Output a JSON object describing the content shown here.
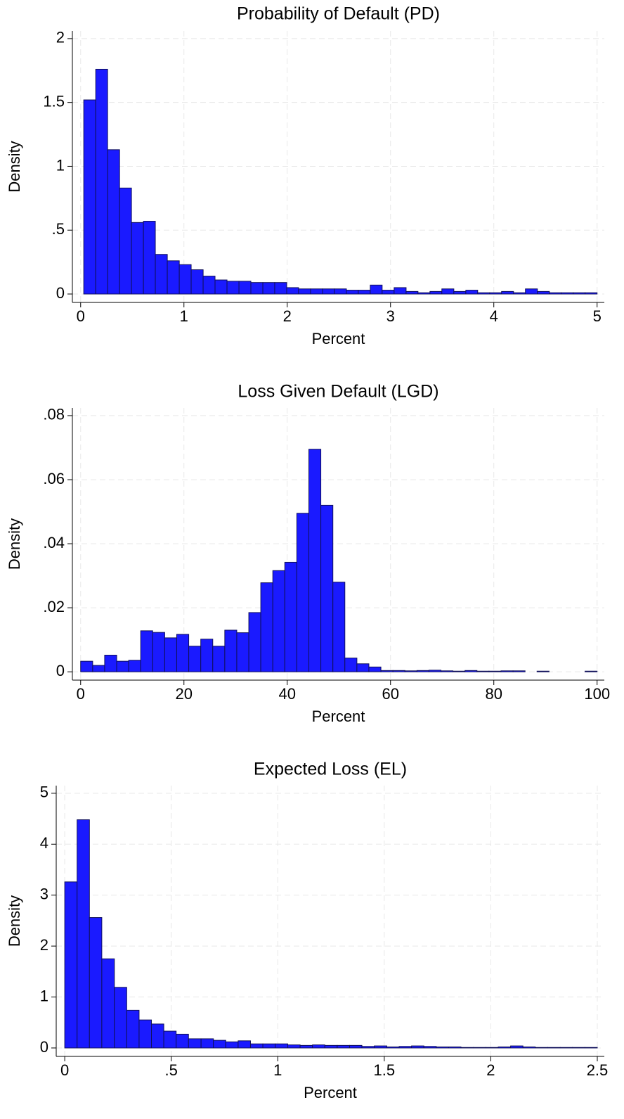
{
  "chart_data": [
    {
      "type": "histogram",
      "title": "Probability of Default (PD)",
      "x_label": "Percent",
      "y_label": "Density",
      "color": "#1a1aff",
      "grid": true,
      "bins": [
        0.03,
        0.146,
        0.261,
        0.377,
        0.492,
        0.608,
        0.723,
        0.839,
        0.955,
        1.07,
        1.186,
        1.301,
        1.417,
        1.533,
        1.648,
        1.764,
        1.879,
        1.995,
        2.11,
        2.226,
        2.342,
        2.457,
        2.573,
        2.688,
        2.804,
        2.919,
        3.035,
        3.151,
        3.266,
        3.382,
        3.497,
        3.613,
        3.729,
        3.844,
        3.96,
        4.075,
        4.191,
        4.306,
        4.422,
        4.538,
        4.653,
        4.769,
        4.884,
        5.0
      ],
      "values": [
        1.52,
        1.76,
        1.13,
        0.83,
        0.56,
        0.57,
        0.31,
        0.26,
        0.23,
        0.19,
        0.14,
        0.11,
        0.1,
        0.1,
        0.09,
        0.09,
        0.09,
        0.05,
        0.04,
        0.04,
        0.04,
        0.04,
        0.03,
        0.03,
        0.07,
        0.03,
        0.05,
        0.02,
        0.01,
        0.02,
        0.04,
        0.02,
        0.03,
        0.01,
        0.01,
        0.02,
        0.01,
        0.04,
        0.02,
        0.01,
        0.01,
        0.01,
        0.01
      ],
      "xlim": [
        -0.08,
        5.07
      ],
      "xticks": [
        0,
        1,
        2,
        3,
        4,
        5
      ],
      "ylim": [
        -0.066,
        2.06
      ],
      "yticks": [
        0,
        {
          "value": 0.5,
          "label": ".5"
        },
        1,
        1.5,
        2
      ]
    },
    {
      "type": "histogram",
      "title": "Loss Given Default (LGD)",
      "x_label": "Percent",
      "y_label": "Density",
      "color": "#1a1aff",
      "grid": true,
      "bins": [
        0,
        2.33,
        4.65,
        6.98,
        9.3,
        11.63,
        13.95,
        16.28,
        18.6,
        20.93,
        23.26,
        25.58,
        27.91,
        30.23,
        32.56,
        34.88,
        37.21,
        39.53,
        41.86,
        44.19,
        46.51,
        48.84,
        51.16,
        53.49,
        55.81,
        58.14,
        60.47,
        62.79,
        65.12,
        67.44,
        69.77,
        72.09,
        74.42,
        76.74,
        79.07,
        81.4,
        83.72,
        86.05,
        88.37,
        90.7,
        93.02,
        95.35,
        97.67,
        100
      ],
      "values": [
        0.0033,
        0.002,
        0.0052,
        0.0033,
        0.0036,
        0.0128,
        0.0123,
        0.0106,
        0.0117,
        0.008,
        0.0102,
        0.008,
        0.013,
        0.0122,
        0.0185,
        0.0278,
        0.0316,
        0.0342,
        0.0495,
        0.0695,
        0.052,
        0.028,
        0.0043,
        0.0025,
        0.0015,
        0.0004,
        0.0004,
        0.0003,
        0.0004,
        0.0005,
        0.0003,
        0.0002,
        0.0004,
        0.0002,
        0.0002,
        0.0003,
        0.0003,
        0,
        0.0002,
        0,
        0,
        0,
        0.0002
      ],
      "xlim": [
        -1.6,
        101.4
      ],
      "xticks": [
        0,
        20,
        40,
        60,
        80,
        100
      ],
      "ylim": [
        -0.0026,
        0.0824
      ],
      "yticks": [
        0,
        {
          "value": 0.02,
          "label": ".02"
        },
        {
          "value": 0.04,
          "label": ".04"
        },
        {
          "value": 0.06,
          "label": ".06"
        },
        {
          "value": 0.08,
          "label": ".08"
        }
      ]
    },
    {
      "type": "histogram",
      "title": "Expected Loss (EL)",
      "x_label": "Percent",
      "y_label": "Density",
      "color": "#1a1aff",
      "grid": true,
      "bins": [
        0,
        0.058,
        0.116,
        0.174,
        0.233,
        0.291,
        0.349,
        0.407,
        0.465,
        0.523,
        0.581,
        0.64,
        0.698,
        0.756,
        0.814,
        0.872,
        0.93,
        0.988,
        1.047,
        1.105,
        1.163,
        1.221,
        1.279,
        1.337,
        1.395,
        1.453,
        1.512,
        1.57,
        1.628,
        1.686,
        1.744,
        1.802,
        1.86,
        1.919,
        1.977,
        2.035,
        2.093,
        2.151,
        2.209,
        2.267,
        2.326,
        2.384,
        2.442,
        2.5
      ],
      "values": [
        3.26,
        4.48,
        2.56,
        1.75,
        1.19,
        0.74,
        0.55,
        0.47,
        0.33,
        0.27,
        0.18,
        0.18,
        0.15,
        0.12,
        0.14,
        0.08,
        0.08,
        0.08,
        0.06,
        0.05,
        0.06,
        0.05,
        0.05,
        0.05,
        0.03,
        0.04,
        0.02,
        0.03,
        0.04,
        0.03,
        0.02,
        0.02,
        0.01,
        0.01,
        0.01,
        0.02,
        0.04,
        0.02,
        0.01,
        0.01,
        0.01,
        0.01,
        0.01
      ],
      "xlim": [
        -0.04,
        2.533
      ],
      "xticks": [
        0,
        {
          "value": 0.5,
          "label": ".5"
        },
        1,
        1.5,
        2,
        2.5
      ],
      "ylim": [
        -0.166,
        5.15
      ],
      "yticks": [
        0,
        1,
        2,
        3,
        4,
        5
      ]
    }
  ]
}
